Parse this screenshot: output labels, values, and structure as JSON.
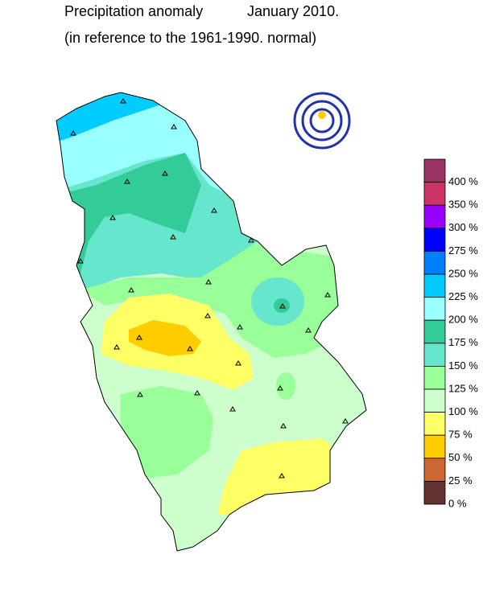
{
  "title": "Precipitation anomaly",
  "date": "January 2010.",
  "subtitle": "(in reference to the 1961-1990. normal)",
  "legend": {
    "labels": [
      "400 %",
      "350 %",
      "300 %",
      "275 %",
      "250 %",
      "225 %",
      "200 %",
      "175 %",
      "150 %",
      "125 %",
      "100 %",
      "75 %",
      "50 %",
      "25 %",
      "0 %"
    ],
    "colors": [
      "#993366",
      "#cc3366",
      "#9900ff",
      "#0000ff",
      "#0080ff",
      "#00ccff",
      "#99ffff",
      "#33cc99",
      "#66e6cc",
      "#99ff99",
      "#ccffcc",
      "#ffff66",
      "#ffcc00",
      "#cc6633",
      "#663333"
    ]
  }
}
